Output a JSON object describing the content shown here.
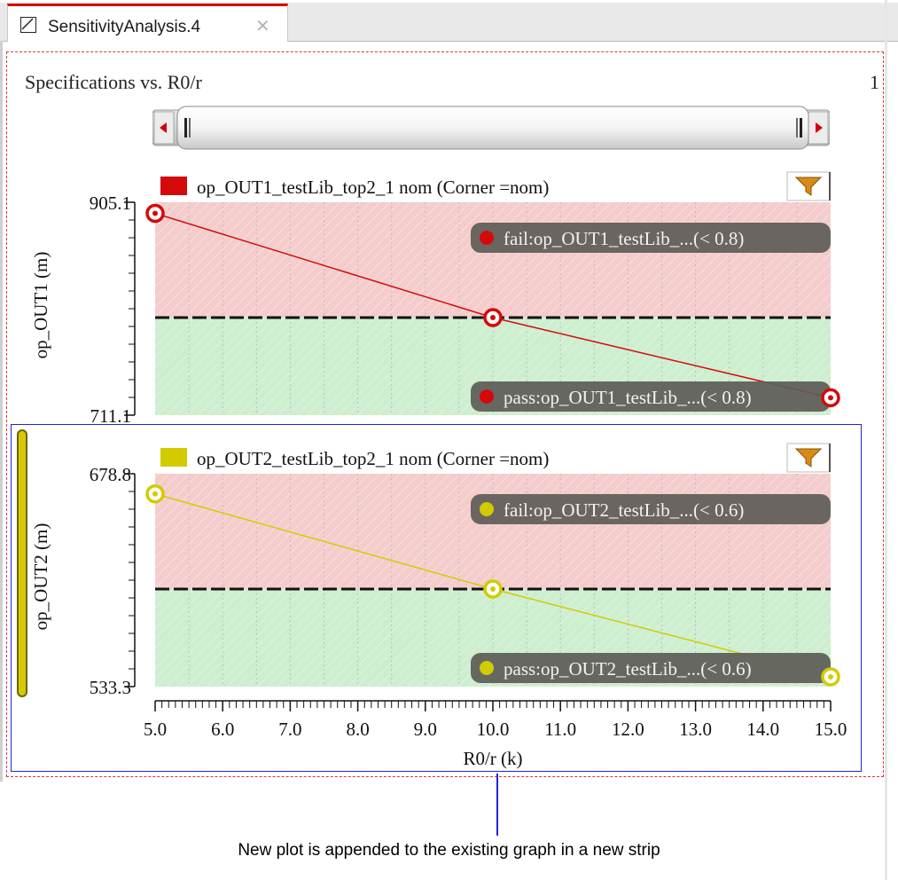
{
  "tab": {
    "title": "SensitivityAnalysis.4",
    "close": "✕"
  },
  "graph": {
    "title": "Specifications vs. R0/r",
    "page": "1"
  },
  "x_axis": {
    "label": "R0/r (k)",
    "ticks": [
      "5.0",
      "6.0",
      "7.0",
      "8.0",
      "9.0",
      "10.0",
      "11.0",
      "12.0",
      "13.0",
      "14.0",
      "15.0"
    ]
  },
  "strips": [
    {
      "legend": "op_OUT1_testLib_top2_1 nom (Corner =nom)",
      "ylabel": "op_OUT1 (m)",
      "ymax": "905.1",
      "ymin": "711.1",
      "fail_label": "fail:op_OUT1_testLib_...(< 0.8)",
      "pass_label": "pass:op_OUT1_testLib_...(< 0.8)",
      "color": "#d40a0a"
    },
    {
      "legend": "op_OUT2_testLib_top2_1 nom (Corner =nom)",
      "ylabel": "op_OUT2 (m)",
      "ymax": "678.8",
      "ymin": "533.3",
      "fail_label": "fail:op_OUT2_testLib_...(< 0.6)",
      "pass_label": "pass:op_OUT2_testLib_...(< 0.6)",
      "color": "#d2cb00"
    }
  ],
  "caption": "New plot is appended to the existing graph in a new strip",
  "chart_data": [
    {
      "type": "line",
      "xlabel": "R0/r (k)",
      "ylabel": "op_OUT1 (m)",
      "ylim": [
        711.1,
        905.1
      ],
      "xlim": [
        5.0,
        15.0
      ],
      "spec_threshold": 800,
      "series": [
        {
          "name": "op_OUT1_testLib_top2_1 nom (Corner =nom)",
          "x": [
            5.0,
            10.0,
            15.0
          ],
          "y": [
            895.0,
            800.0,
            727.0
          ]
        }
      ]
    },
    {
      "type": "line",
      "xlabel": "R0/r (k)",
      "ylabel": "op_OUT2 (m)",
      "ylim": [
        533.3,
        678.8
      ],
      "xlim": [
        5.0,
        15.0
      ],
      "spec_threshold": 600,
      "series": [
        {
          "name": "op_OUT2_testLib_top2_1 nom (Corner =nom)",
          "x": [
            5.0,
            10.0,
            15.0
          ],
          "y": [
            665.0,
            600.0,
            540.0
          ]
        }
      ]
    }
  ]
}
